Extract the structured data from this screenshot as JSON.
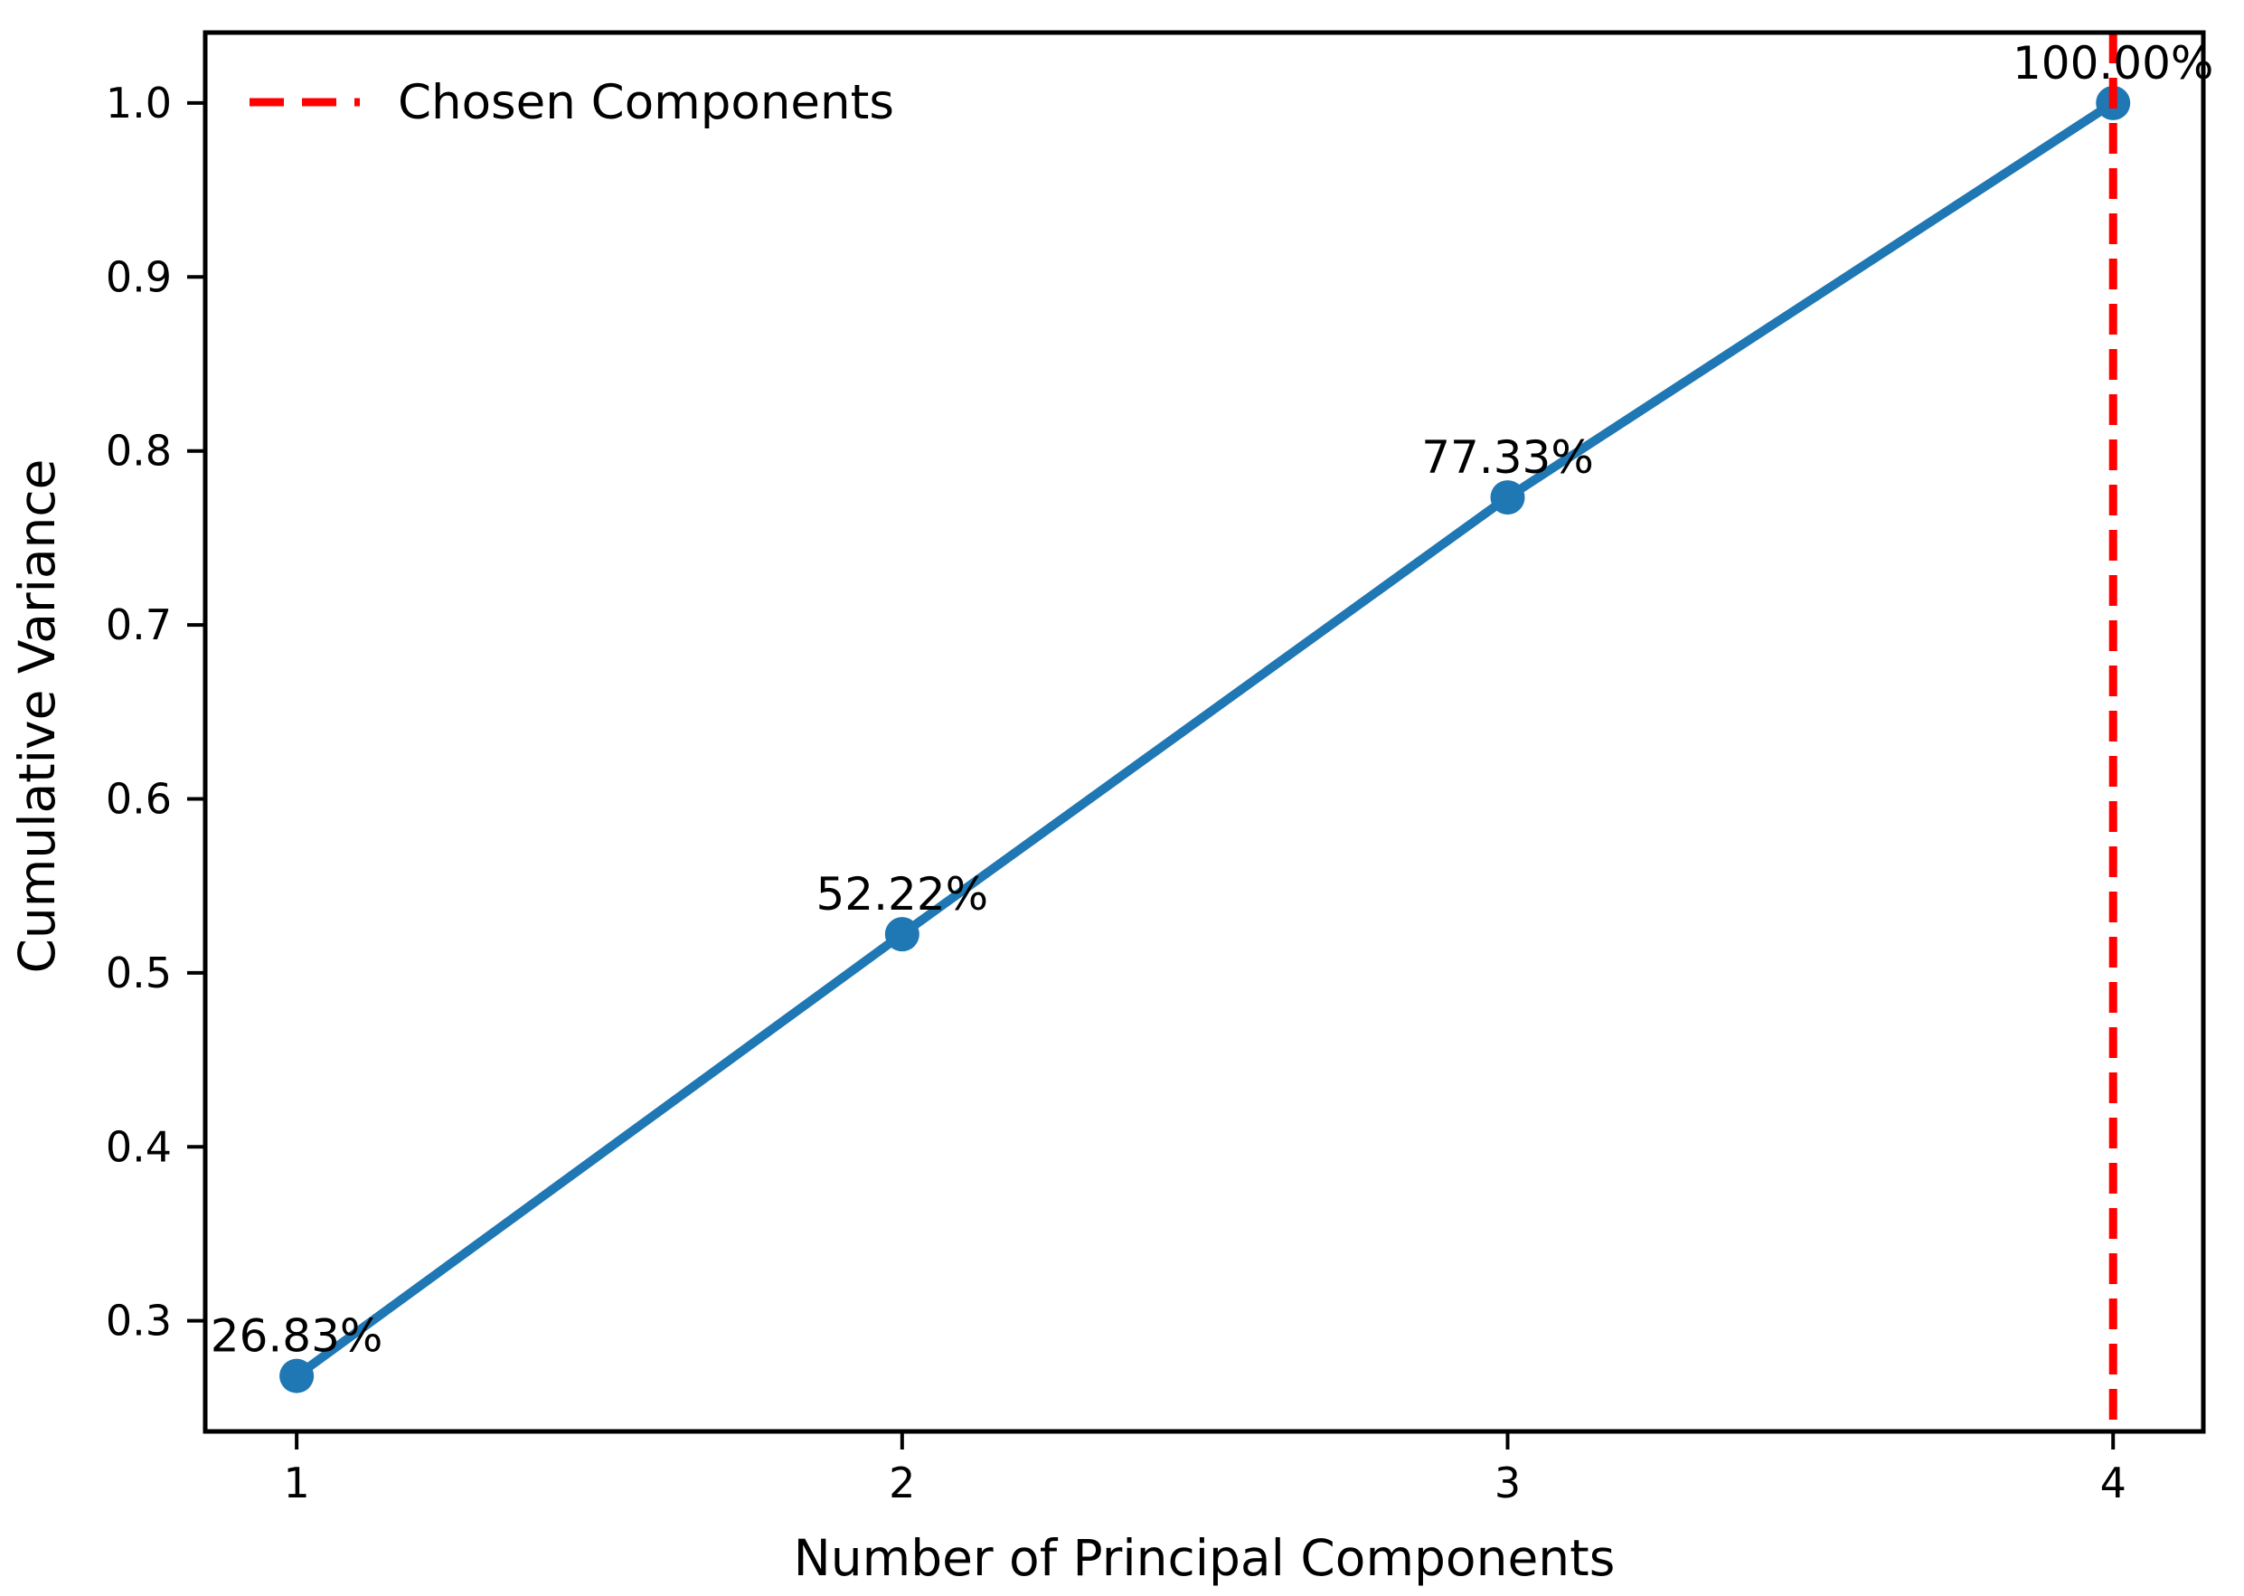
{
  "chart_data": {
    "type": "line",
    "title": "",
    "xlabel": "Number of Principal Components",
    "ylabel": "Cumulative Variance",
    "x": [
      1,
      2,
      3,
      4
    ],
    "series": [
      {
        "name": "cumulative-variance",
        "values": [
          0.2683,
          0.5222,
          0.7733,
          1.0
        ],
        "color": "#1f77b4",
        "marker": "circle",
        "point_labels": [
          "26.83%",
          "52.22%",
          "77.33%",
          "100.00%"
        ]
      }
    ],
    "vline": {
      "x": 4,
      "color": "#ff0000",
      "style": "dashed",
      "label": "Chosen Components"
    },
    "legend": {
      "position": "upper-left",
      "frame": false,
      "entries": [
        {
          "label": "Chosen Components",
          "color": "#ff0000",
          "style": "dashed"
        }
      ]
    },
    "x_ticks": [
      {
        "value": 1,
        "label": "1"
      },
      {
        "value": 2,
        "label": "2"
      },
      {
        "value": 3,
        "label": "3"
      },
      {
        "value": 4,
        "label": "4"
      }
    ],
    "y_ticks": [
      {
        "value": 0.3,
        "label": "0.3"
      },
      {
        "value": 0.4,
        "label": "0.4"
      },
      {
        "value": 0.5,
        "label": "0.5"
      },
      {
        "value": 0.6,
        "label": "0.6"
      },
      {
        "value": 0.7,
        "label": "0.7"
      },
      {
        "value": 0.8,
        "label": "0.8"
      },
      {
        "value": 0.9,
        "label": "0.9"
      },
      {
        "value": 1.0,
        "label": "1.0"
      }
    ],
    "xlim": [
      0.849,
      4.149
    ],
    "ylim": [
      0.2364,
      1.0405
    ],
    "grid": false,
    "background": "#ffffff",
    "spine_color": "#000000",
    "text_color": "#000000"
  }
}
